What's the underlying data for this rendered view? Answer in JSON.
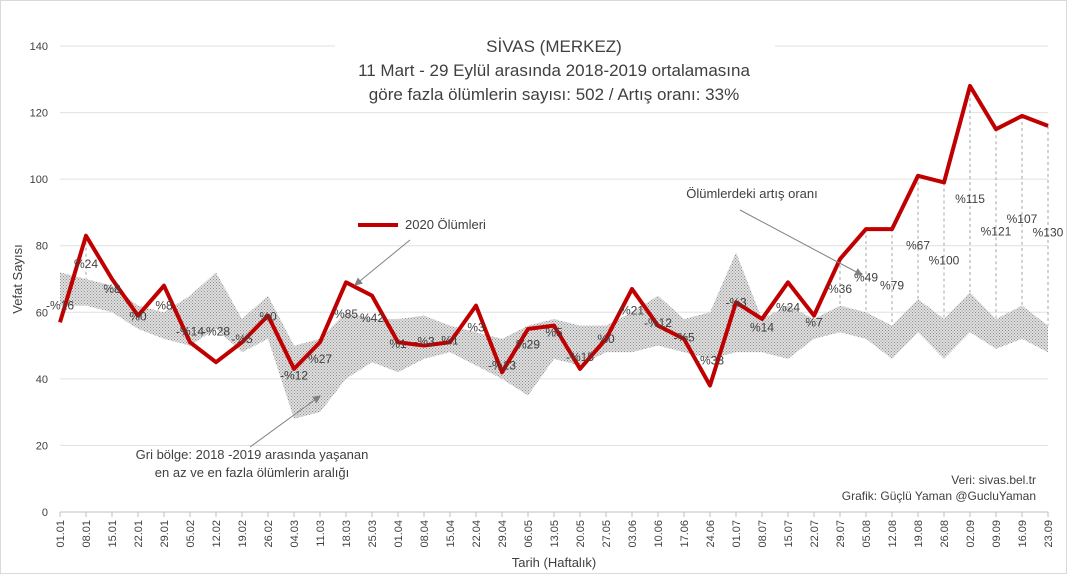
{
  "chart_data": {
    "type": "line",
    "title": [
      "SİVAS (MERKEZ)",
      "11 Mart - 29 Eylül arasında 2018-2019 ortalamasına",
      "göre fazla ölümlerin sayısı: 502 / Artış oranı: 33%"
    ],
    "y_label": "Vefat Sayısı",
    "x_label": "Tarih (Haftalık)",
    "categories": [
      "01.01",
      "08.01",
      "15.01",
      "22.01",
      "29.01",
      "05.02",
      "12.02",
      "19.02",
      "26.02",
      "04.03",
      "11.03",
      "18.03",
      "25.03",
      "01.04",
      "08.04",
      "15.04",
      "22.04",
      "29.04",
      "06.05",
      "13.05",
      "20.05",
      "27.05",
      "03.06",
      "10.06",
      "17.06",
      "24.06",
      "01.07",
      "08.07",
      "15.07",
      "22.07",
      "29.07",
      "05.08",
      "12.08",
      "19.08",
      "26.08",
      "02.09",
      "09.09",
      "16.09",
      "23.09"
    ],
    "ylim": [
      0,
      140
    ],
    "yticks": [
      0,
      20,
      40,
      60,
      80,
      100,
      120,
      140
    ],
    "grid": true,
    "series": [
      {
        "name": "2020 Ölümleri",
        "color": "#c00000",
        "values": [
          57,
          83,
          70,
          59,
          68,
          51,
          45,
          51,
          59,
          43,
          51,
          69,
          65,
          51,
          50,
          51,
          62,
          42,
          55,
          56,
          43,
          52,
          67,
          56,
          52,
          38,
          63,
          58,
          69,
          59,
          76,
          85,
          85,
          101,
          99,
          128,
          115,
          119,
          116
        ]
      }
    ],
    "range_band": {
      "color": "#a6a6a6",
      "min": [
        62,
        62,
        60,
        55,
        52,
        50,
        55,
        48,
        52,
        28,
        30,
        40,
        45,
        42,
        46,
        48,
        44,
        40,
        35,
        46,
        44,
        48,
        48,
        50,
        48,
        46,
        48,
        48,
        46,
        52,
        54,
        52,
        46,
        54,
        46,
        54,
        49,
        52,
        48
      ],
      "max": [
        72,
        70,
        68,
        62,
        60,
        65,
        72,
        58,
        65,
        50,
        52,
        60,
        58,
        58,
        59,
        56,
        54,
        52,
        56,
        58,
        56,
        56,
        60,
        65,
        58,
        60,
        78,
        58,
        62,
        58,
        62,
        60,
        56,
        64,
        58,
        66,
        58,
        62,
        56
      ]
    },
    "increase": {
      "values": [
        -16,
        24,
        8,
        0,
        8,
        -14,
        -28,
        -5,
        0,
        -12,
        27,
        85,
        42,
        1,
        -3,
        1,
        3,
        -13,
        29,
        5,
        -15,
        0,
        21,
        -12,
        -5,
        -33,
        -3,
        14,
        24,
        7,
        36,
        49,
        79,
        67,
        100,
        115,
        121,
        107,
        130
      ],
      "value_labels": [
        "-%16",
        "%24",
        "%8",
        "%0",
        "%8",
        "-%14",
        "-%28",
        "-%5",
        "%0",
        "-%12",
        "%27",
        "%85",
        "%42",
        "%1",
        "-%3",
        "%1",
        "%3",
        "-%13",
        "%29",
        "%5",
        "-%15",
        "%0",
        "%21",
        "-%12",
        "-%5",
        "-%33",
        "-%3",
        "%14",
        "%24",
        "%7",
        "%36",
        "%49",
        "%79",
        "%67",
        "%100",
        "%115",
        "%121",
        "%107",
        "%130"
      ]
    },
    "annotations": [
      "Ölümlerdeki artış oranı",
      "Gri bölge: 2018 -2019 arasında yaşanan",
      "en az ve en fazla ölümlerin aralığı",
      "Veri:  sivas.bel.tr",
      "Grafik: Güçlü Yaman @GucluYaman"
    ]
  }
}
